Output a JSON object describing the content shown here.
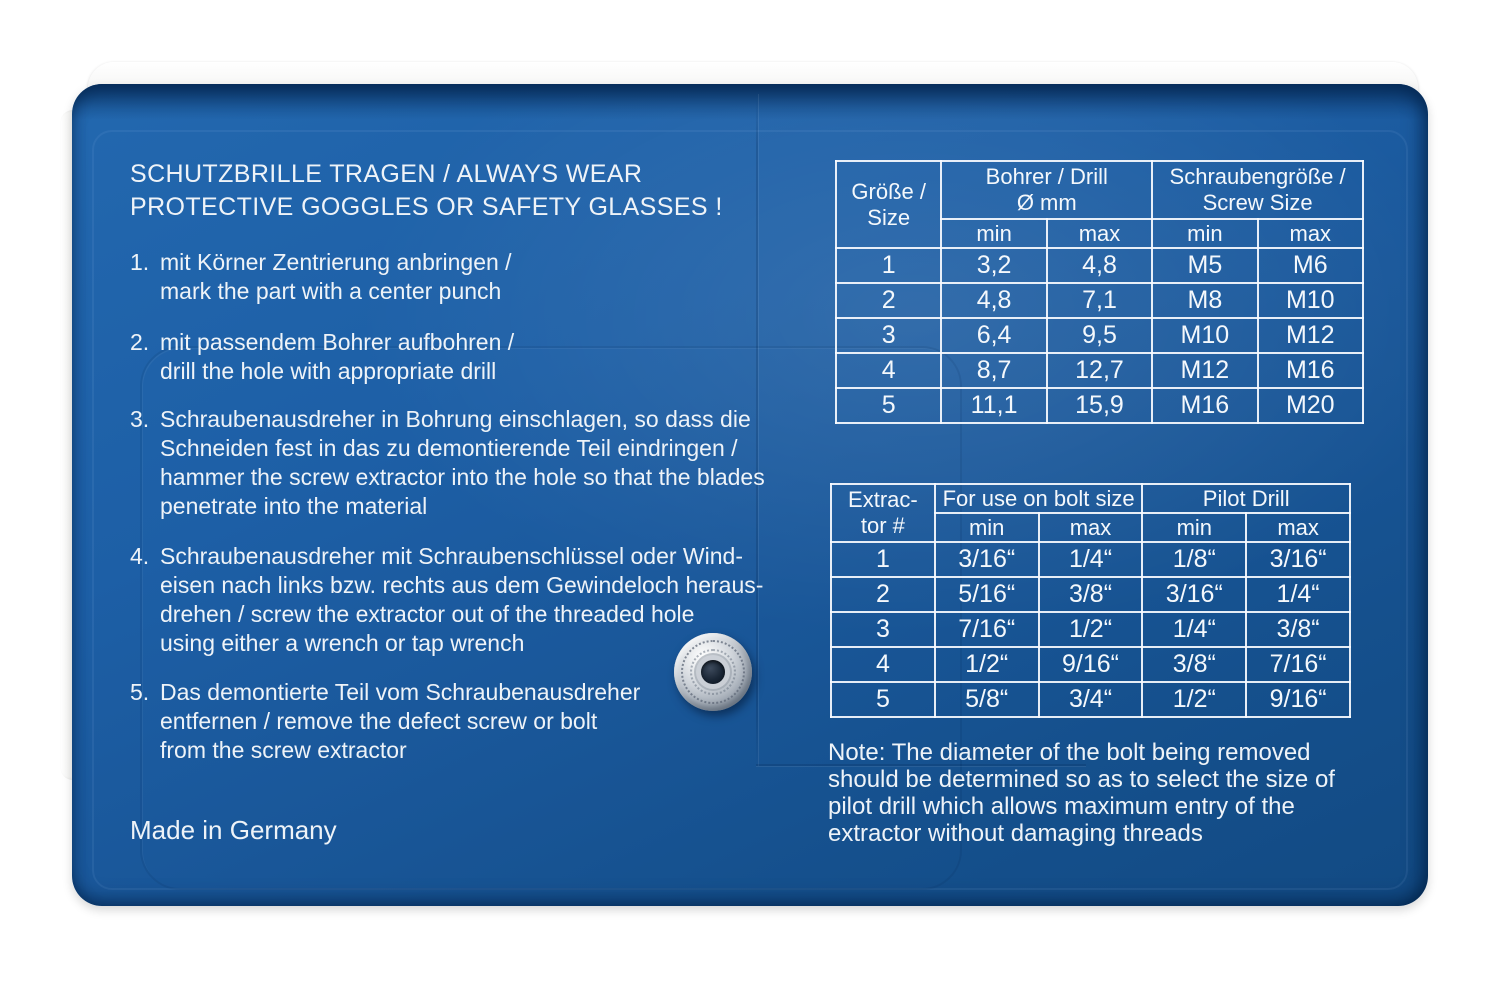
{
  "colors": {
    "pouch_blue": "#1d5fa6",
    "pouch_blue_dark": "#124a83",
    "flap_white": "#f3f3f2",
    "text_white": "#eef3f8",
    "table_line": "#f8fbff",
    "snap_silver": "#cfd4da"
  },
  "pouch": {
    "title": [
      "SCHUTZBRILLE TRAGEN / ALWAYS WEAR",
      "PROTECTIVE GOGGLES OR SAFETY GLASSES !"
    ],
    "instructions": [
      {
        "num": "1.",
        "lines": [
          "mit Körner Zentrierung anbringen /",
          "mark the part with a center punch"
        ]
      },
      {
        "num": "2.",
        "lines": [
          "mit passendem Bohrer aufbohren /",
          "drill the hole with appropriate drill"
        ]
      },
      {
        "num": "3.",
        "lines": [
          "Schraubenausdreher in Bohrung einschlagen, so dass die",
          "Schneiden fest in das zu demontierende Teil eindringen /",
          "hammer the screw extractor into the hole so that the blades",
          "penetrate into the material"
        ]
      },
      {
        "num": "4.",
        "lines": [
          "Schraubenausdreher mit Schraubenschlüssel oder Wind-",
          "eisen nach links bzw. rechts aus dem Gewindeloch heraus-",
          "drehen / screw the extractor out of the threaded hole",
          "using either a wrench or tap wrench"
        ]
      },
      {
        "num": "5.",
        "lines": [
          "Das demontierte Teil vom Schraubenausdreher",
          "entfernen / remove the defect screw or bolt",
          "from the screw extractor"
        ]
      }
    ],
    "made_in": "Made in Germany",
    "note_lines": [
      "Note: The diameter of the bolt being removed",
      "should be determined so as to select the size of",
      "pilot drill which allows maximum entry of the",
      "extractor without damaging threads"
    ]
  },
  "table1": {
    "corner": [
      "Größe /",
      "Size"
    ],
    "group1": [
      "Bohrer / Drill",
      "Ø mm"
    ],
    "group2": [
      "Schraubengröße /",
      "Screw Size"
    ],
    "sub": [
      "min",
      "max",
      "min",
      "max"
    ],
    "rows": [
      [
        "1",
        "3,2",
        "4,8",
        "M5",
        "M6"
      ],
      [
        "2",
        "4,8",
        "7,1",
        "M8",
        "M10"
      ],
      [
        "3",
        "6,4",
        "9,5",
        "M10",
        "M12"
      ],
      [
        "4",
        "8,7",
        "12,7",
        "M12",
        "M16"
      ],
      [
        "5",
        "11,1",
        "15,9",
        "M16",
        "M20"
      ]
    ]
  },
  "table2": {
    "corner": [
      "Extrac-",
      "tor #"
    ],
    "group1": [
      "For use on bolt size"
    ],
    "group2": [
      "Pilot Drill"
    ],
    "sub": [
      "min",
      "max",
      "min",
      "max"
    ],
    "rows": [
      [
        "1",
        "3/16“",
        "1/4“",
        "1/8“",
        "3/16“"
      ],
      [
        "2",
        "5/16“",
        "3/8“",
        "3/16“",
        "1/4“"
      ],
      [
        "3",
        "7/16“",
        "1/2“",
        "1/4“",
        "3/8“"
      ],
      [
        "4",
        "1/2“",
        "9/16“",
        "3/8“",
        "7/16“"
      ],
      [
        "5",
        "5/8“",
        "3/4“",
        "1/2“",
        "9/16“"
      ]
    ]
  }
}
